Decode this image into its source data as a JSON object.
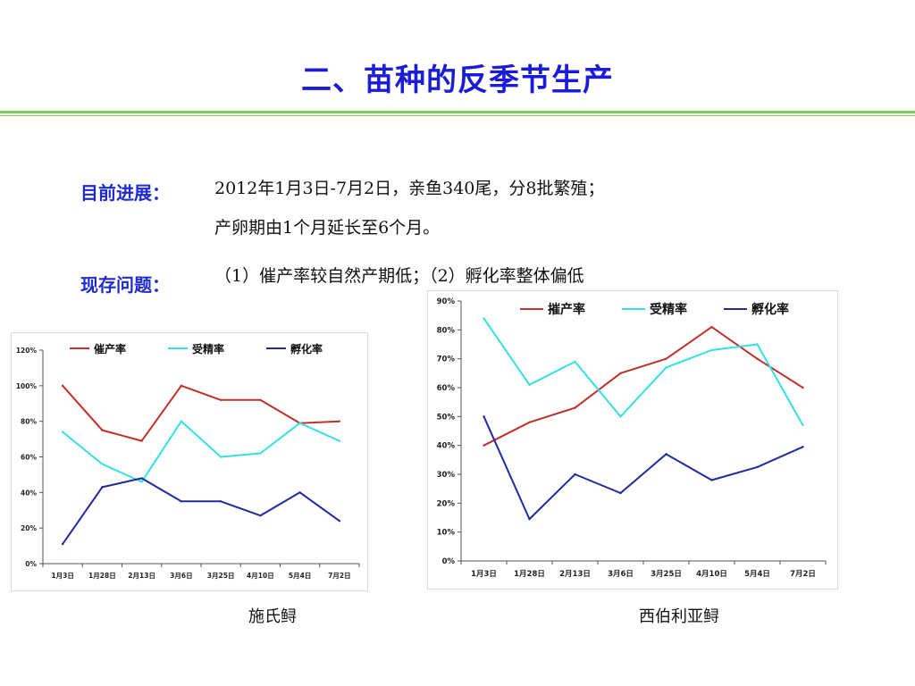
{
  "slide": {
    "title": "二、苗种的反季节生产",
    "progress_label": "目前进展：",
    "progress_line1": "2012年1月3日-7月2日，亲鱼340尾，分8批繁殖；",
    "progress_line2": "产卵期由1个月延长至6个月。",
    "problem_label": "现存问题：",
    "problem_text": "（1）催产率较自然产期低；（2）孵化率整体偏低",
    "colors": {
      "title": "#1c1cd6",
      "labels": "#1f2bd0",
      "rule": "#7ccd5a"
    }
  },
  "chart_data": [
    {
      "type": "line",
      "caption": "施氏鲟",
      "categories": [
        "1月3日",
        "1月28日",
        "2月13日",
        "3月6日",
        "3月25日",
        "4月10日",
        "5月4日",
        "7月2日"
      ],
      "yticks": [
        "0%",
        "20%",
        "40%",
        "60%",
        "80%",
        "100%",
        "120%"
      ],
      "ylim": [
        0,
        1.2
      ],
      "series": [
        {
          "name": "催产率",
          "color": "#c0302a",
          "values": [
            1.0,
            0.75,
            0.69,
            1.0,
            0.92,
            0.92,
            0.79,
            0.8
          ]
        },
        {
          "name": "受精率",
          "color": "#33e0e6",
          "values": [
            0.74,
            0.56,
            0.46,
            0.8,
            0.6,
            0.62,
            0.79,
            0.69
          ]
        },
        {
          "name": "孵化率",
          "color": "#1f2a9c",
          "values": [
            0.11,
            0.43,
            0.48,
            0.35,
            0.35,
            0.27,
            0.4,
            0.24
          ]
        }
      ],
      "legend": "top",
      "grid": false
    },
    {
      "type": "line",
      "caption": "西伯利亚鲟",
      "categories": [
        "1月3日",
        "1月28日",
        "2月13日",
        "3月6日",
        "3月25日",
        "4月10日",
        "5月4日",
        "7月2日"
      ],
      "yticks": [
        "0%",
        "10%",
        "20%",
        "30%",
        "40%",
        "50%",
        "60%",
        "70%",
        "80%",
        "90%"
      ],
      "ylim": [
        0,
        0.9
      ],
      "series": [
        {
          "name": "摧产率",
          "color": "#c0302a",
          "values": [
            0.4,
            0.48,
            0.53,
            0.65,
            0.7,
            0.81,
            0.7,
            0.6
          ]
        },
        {
          "name": "受精率",
          "color": "#33e0e6",
          "values": [
            0.84,
            0.61,
            0.69,
            0.5,
            0.67,
            0.73,
            0.75,
            0.47
          ]
        },
        {
          "name": "孵化率",
          "color": "#1f2a9c",
          "values": [
            0.5,
            0.145,
            0.3,
            0.235,
            0.37,
            0.28,
            0.325,
            0.395
          ]
        }
      ],
      "legend": "top",
      "grid": false
    }
  ]
}
